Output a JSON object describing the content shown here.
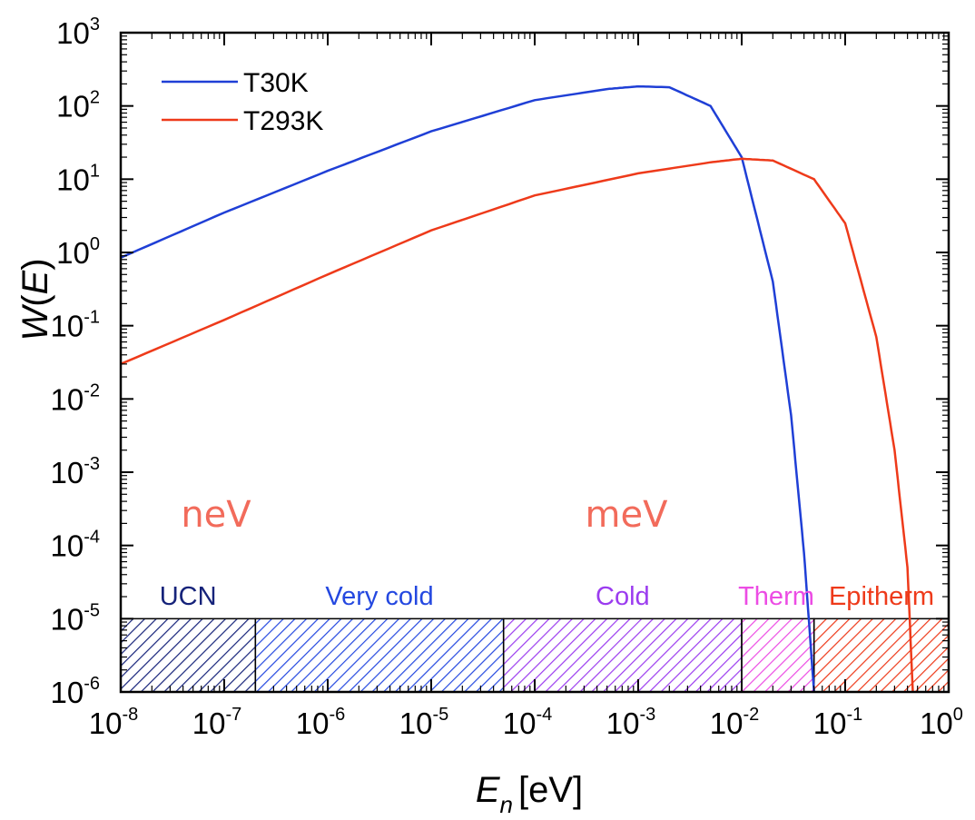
{
  "chart_data": {
    "type": "line",
    "title": "",
    "xlabel": {
      "symbol": "E",
      "subscript": "n",
      "unit": "[eV]"
    },
    "ylabel": {
      "prefix": "W",
      "inner": "E"
    },
    "x_scale": "log",
    "y_scale": "log",
    "xlim": [
      1e-08,
      1
    ],
    "ylim": [
      1e-06,
      1000
    ],
    "x_ticks": [
      {
        "base": "10",
        "exp": "-8"
      },
      {
        "base": "10",
        "exp": "-7"
      },
      {
        "base": "10",
        "exp": "-6"
      },
      {
        "base": "10",
        "exp": "-5"
      },
      {
        "base": "10",
        "exp": "-4"
      },
      {
        "base": "10",
        "exp": "-3"
      },
      {
        "base": "10",
        "exp": "-2"
      },
      {
        "base": "10",
        "exp": "-1"
      },
      {
        "base": "10",
        "exp": "0"
      }
    ],
    "y_ticks": [
      {
        "base": "10",
        "exp": "-6"
      },
      {
        "base": "10",
        "exp": "-5"
      },
      {
        "base": "10",
        "exp": "-4"
      },
      {
        "base": "10",
        "exp": "-3"
      },
      {
        "base": "10",
        "exp": "-2"
      },
      {
        "base": "10",
        "exp": "-1"
      },
      {
        "base": "10",
        "exp": "0"
      },
      {
        "base": "10",
        "exp": "1"
      },
      {
        "base": "10",
        "exp": "2"
      },
      {
        "base": "10",
        "exp": "3"
      }
    ],
    "legend_position": "top-left",
    "series": [
      {
        "name": "T30K",
        "color": "#1f3fd6",
        "x": [
          1e-08,
          1e-07,
          1e-06,
          1e-05,
          0.0001,
          0.0005,
          0.001,
          0.002,
          0.005,
          0.01,
          0.02,
          0.03,
          0.04,
          0.05
        ],
        "y": [
          0.85,
          3.5,
          13,
          45,
          120,
          170,
          185,
          180,
          100,
          20,
          0.4,
          0.006,
          8e-05,
          1e-06
        ]
      },
      {
        "name": "T293K",
        "color": "#ee3a1a",
        "x": [
          1e-08,
          1e-07,
          1e-06,
          1e-05,
          0.0001,
          0.001,
          0.005,
          0.01,
          0.02,
          0.05,
          0.1,
          0.2,
          0.3,
          0.4,
          0.45
        ],
        "y": [
          0.03,
          0.12,
          0.5,
          2,
          6,
          12,
          17,
          19,
          18,
          10,
          2.5,
          0.07,
          0.002,
          5e-05,
          1e-06
        ]
      }
    ],
    "energy_scale_labels": [
      {
        "text": "neV",
        "color": "#f26b5b"
      },
      {
        "text": "meV",
        "color": "#f26b5b"
      }
    ],
    "regions": [
      {
        "label": "UCN",
        "x_start": 1e-08,
        "x_end": 2e-07,
        "color": "#16237a"
      },
      {
        "label": "Very cold",
        "x_start": 2e-07,
        "x_end": 5e-05,
        "color": "#2448e0"
      },
      {
        "label": "Cold",
        "x_start": 5e-05,
        "x_end": 0.01,
        "color": "#9b3cef"
      },
      {
        "label": "Therm",
        "x_start": 0.01,
        "x_end": 0.05,
        "color": "#ec4ce4"
      },
      {
        "label": "Epitherm",
        "x_start": 0.05,
        "x_end": 1,
        "color": "#ee3a1a"
      }
    ],
    "region_band_top": 1e-05,
    "grid": false
  }
}
